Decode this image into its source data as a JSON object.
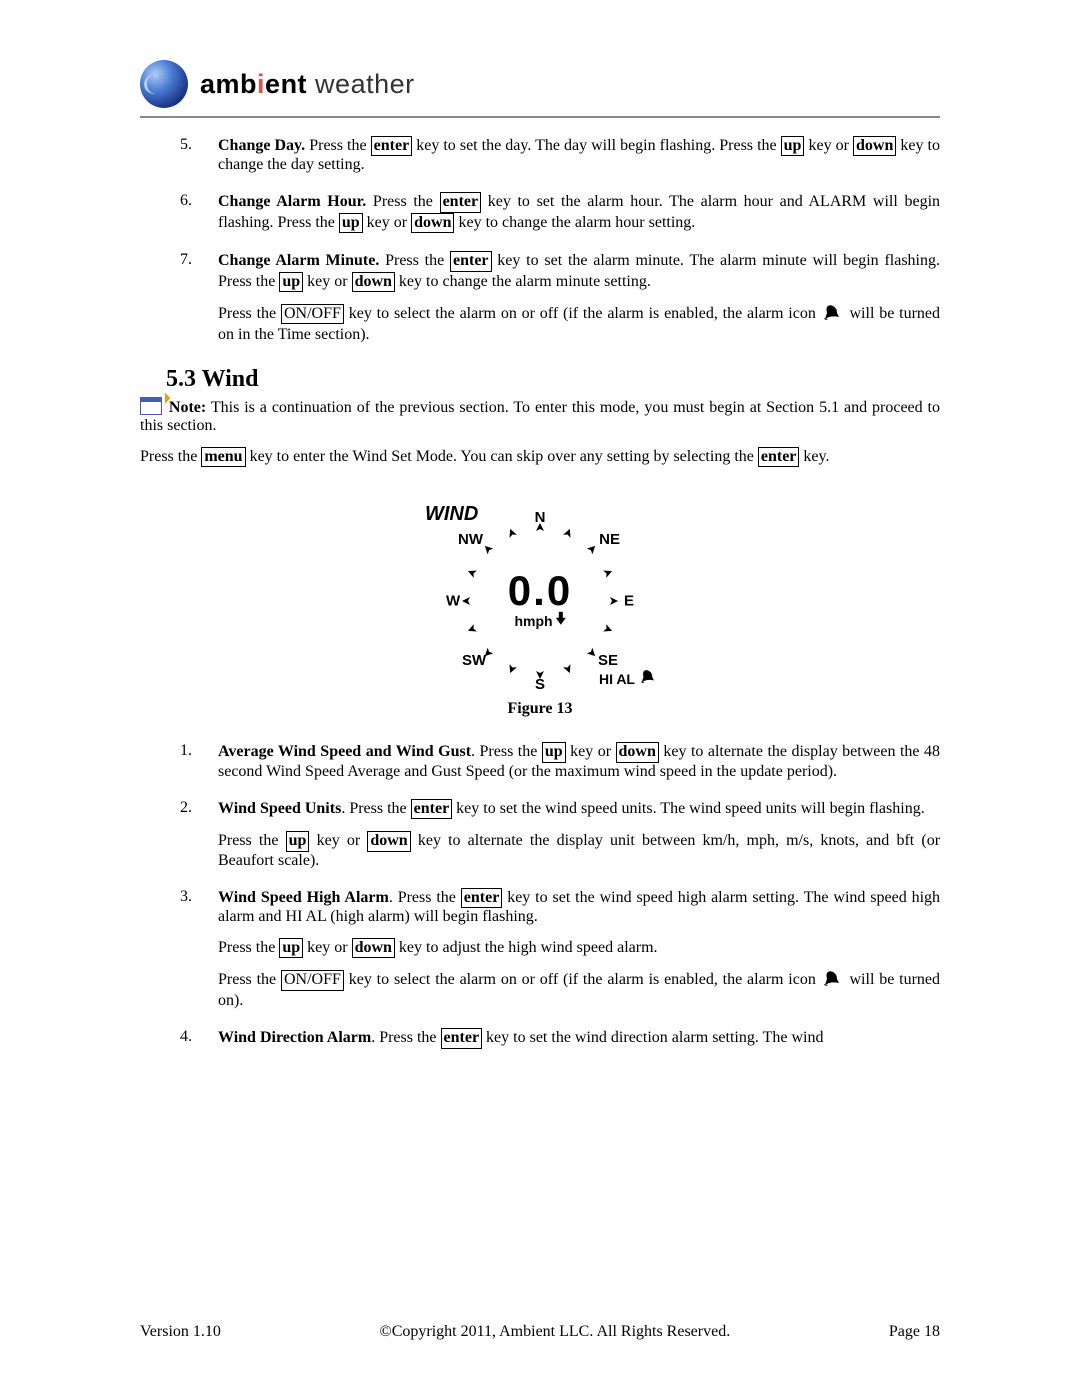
{
  "brand": {
    "bold": "amb",
    "i": "i",
    "bold2": "ent",
    "light": " weather"
  },
  "list": {
    "item5": {
      "num": "5.",
      "title": "Change Day.",
      "t1": " Press the ",
      "k1": "enter",
      "t2": " key to set the day. The day will begin flashing. Press the ",
      "k2": "up",
      "t3": " key or ",
      "k3": "down",
      "t4": " key to change the day setting."
    },
    "item6": {
      "num": "6.",
      "title": "Change Alarm Hour.",
      "t1": " Press the ",
      "k1": "enter",
      "t2": " key to set the alarm hour. The alarm hour and ALARM will begin flashing. Press the ",
      "k2": "up",
      "t3": " key or ",
      "k3": "down",
      "t4": " key to change the alarm hour setting."
    },
    "item7": {
      "num": "7.",
      "title": "Change Alarm Minute.",
      "t1": " Press the ",
      "k1": "enter",
      "t2": " key to set the alarm minute. The alarm minute will begin flashing. Press the ",
      "k2": "up",
      "t3": " key or ",
      "k3": "down",
      "t4": " key to change the alarm minute setting.",
      "p2a": "Press the ",
      "k4": "ON/OFF",
      "p2b": " key to select the alarm on or off (if the alarm is enabled, the alarm icon ",
      "p2c": " will be turned on in the Time section)."
    }
  },
  "section": {
    "heading": "5.3  Wind"
  },
  "note": {
    "label": "Note:",
    "body": " This is a continuation of the previous section. To enter this mode, you must begin at Section 5.1 and proceed to this section."
  },
  "intro": {
    "t1": "Press the ",
    "k1": "menu",
    "t2": " key to enter the Wind Set Mode. You can skip over any setting by selecting the ",
    "k2": "enter",
    "t3": " key."
  },
  "wind": {
    "title": "WIND",
    "N": "N",
    "NE": "NE",
    "E": "E",
    "SE": "SE",
    "S": "S",
    "SW": "SW",
    "W": "W",
    "NW": "NW",
    "value": "0.0",
    "unit": "hmph",
    "hial": "HI AL"
  },
  "figure_caption": "Figure 13",
  "list2": {
    "i1": {
      "num": "1.",
      "title": "Average Wind Speed and Wind Gust",
      "t1": ". Press the ",
      "k1": "up",
      "t2": " key or ",
      "k2": "down",
      "t3": " key to alternate the display between the 48 second Wind Speed Average and Gust Speed (or the maximum wind speed in the update period)."
    },
    "i2": {
      "num": "2.",
      "title": "Wind Speed Units",
      "t1": ". Press the ",
      "k1": "enter",
      "t2": " key to set the wind speed units. The wind speed units will begin flashing.",
      "p2a": "Press the ",
      "k2": "up",
      "p2b": " key or ",
      "k3": "down",
      "p2c": " key to alternate the display unit between km/h, mph, m/s, knots, and bft (or Beaufort scale)."
    },
    "i3": {
      "num": "3.",
      "title": "Wind Speed High Alarm",
      "t1": ". Press the ",
      "k1": "enter",
      "t2": " key to set the wind speed high alarm setting. The wind speed high alarm and HI AL (high alarm) will begin flashing.",
      "p2a": "Press the ",
      "k2": "up",
      "p2b": " key or ",
      "k3": "down",
      "p2c": " key to adjust the high wind speed alarm.",
      "p3a": "Press the ",
      "k4": "ON/OFF",
      "p3b": " key to select the alarm on or off (if the alarm is enabled, the alarm icon ",
      "p3c": " will be turned on)."
    },
    "i4": {
      "num": "4.",
      "title": "Wind Direction Alarm",
      "t1": ". Press the ",
      "k1": "enter",
      "t2": " key to set the wind direction alarm setting. The wind"
    }
  },
  "footer": {
    "version": "Version 1.10",
    "copyright": "©Copyright 2011, Ambient LLC. All Rights Reserved.",
    "page": "Page 18"
  }
}
